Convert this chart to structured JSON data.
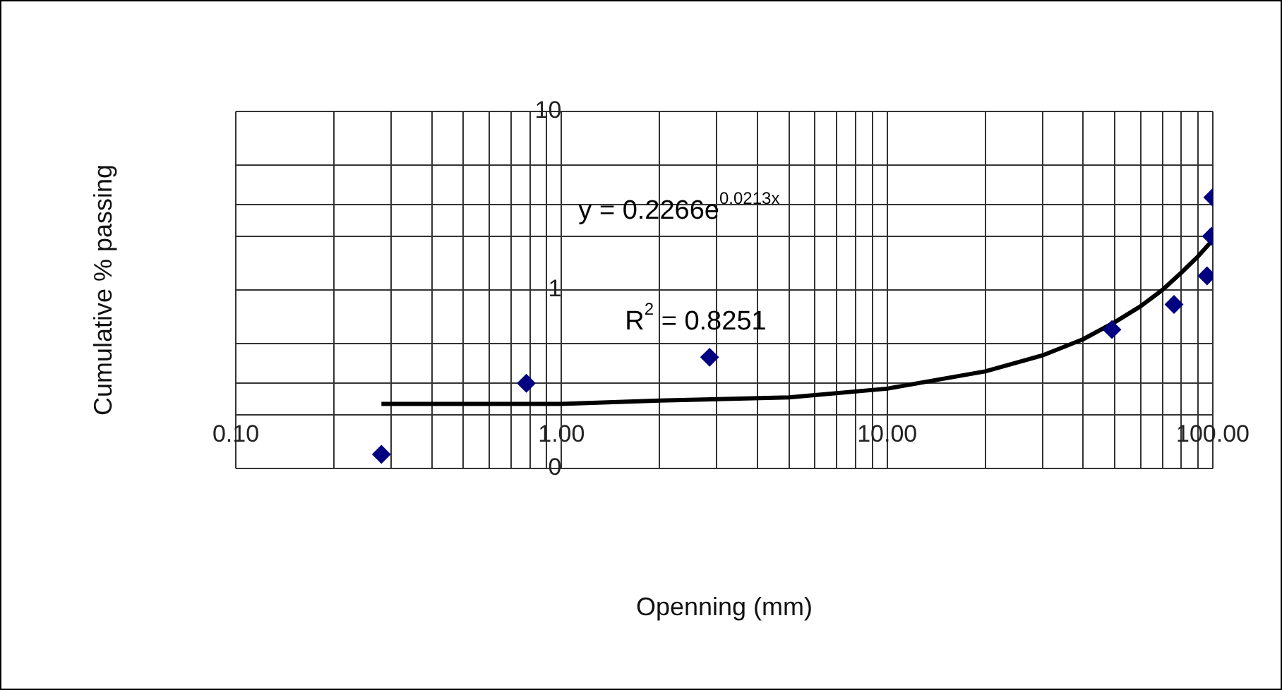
{
  "chart_data": {
    "type": "scatter",
    "xlabel": "Openning (mm)",
    "ylabel": "Cumulative % passing",
    "annotations": [
      "y = 0.2266e$^{0.0213x}$",
      "R$^{2}$ = 0.8251"
    ],
    "log": "xy",
    "grid": true,
    "legend": false,
    "marker": "diamond",
    "xlim": [
      0.1,
      100
    ],
    "ylim": [
      0.1,
      10
    ],
    "xticks": [
      {
        "value": 0.1,
        "label": "0.10"
      },
      {
        "value": 0.2,
        "label": null
      },
      {
        "value": 0.3,
        "label": null
      },
      {
        "value": 0.4,
        "label": null
      },
      {
        "value": 0.5,
        "label": null
      },
      {
        "value": 0.6,
        "label": null
      },
      {
        "value": 0.7,
        "label": null
      },
      {
        "value": 0.8,
        "label": null
      },
      {
        "value": 0.9,
        "label": null
      },
      {
        "value": 1,
        "label": "1.00"
      },
      {
        "value": 2,
        "label": null
      },
      {
        "value": 3,
        "label": null
      },
      {
        "value": 4,
        "label": null
      },
      {
        "value": 5,
        "label": null
      },
      {
        "value": 6,
        "label": null
      },
      {
        "value": 7,
        "label": null
      },
      {
        "value": 8,
        "label": null
      },
      {
        "value": 9,
        "label": null
      },
      {
        "value": 10,
        "label": "10.00"
      },
      {
        "value": 20,
        "label": null
      },
      {
        "value": 30,
        "label": null
      },
      {
        "value": 40,
        "label": null
      },
      {
        "value": 50,
        "label": null
      },
      {
        "value": 60,
        "label": null
      },
      {
        "value": 70,
        "label": null
      },
      {
        "value": 80,
        "label": null
      },
      {
        "value": 90,
        "label": null
      },
      {
        "value": 100,
        "label": "100.00"
      }
    ],
    "yticks": [
      {
        "value": 0.1,
        "label": "0"
      },
      {
        "value": 0.3,
        "label": null
      },
      {
        "value": 0.5,
        "label": null
      },
      {
        "value": 1,
        "label": "1"
      },
      {
        "value": 2,
        "label": null
      },
      {
        "value": 3,
        "label": null
      },
      {
        "value": 5,
        "label": null
      },
      {
        "value": 10,
        "label": "10"
      }
    ],
    "series": [
      {
        "type": "scatter",
        "color": "#000080",
        "x": [
          0.28,
          0.78,
          2.85,
          49,
          76,
          96,
          99,
          100
        ],
        "values": [
          0.12,
          0.3,
          0.42,
          0.6,
          0.83,
          1.2,
          2.0,
          3.3
        ]
      },
      {
        "type": "line",
        "color": "#000000",
        "marker": "none",
        "x": [
          0.28,
          1,
          2,
          5,
          10,
          20,
          30,
          40,
          50,
          60,
          70,
          80,
          90,
          100
        ],
        "values": [
          0.23,
          0.23,
          0.24,
          0.25,
          0.28,
          0.35,
          0.43,
          0.53,
          0.66,
          0.81,
          1.0,
          1.25,
          1.54,
          1.91
        ]
      }
    ]
  }
}
